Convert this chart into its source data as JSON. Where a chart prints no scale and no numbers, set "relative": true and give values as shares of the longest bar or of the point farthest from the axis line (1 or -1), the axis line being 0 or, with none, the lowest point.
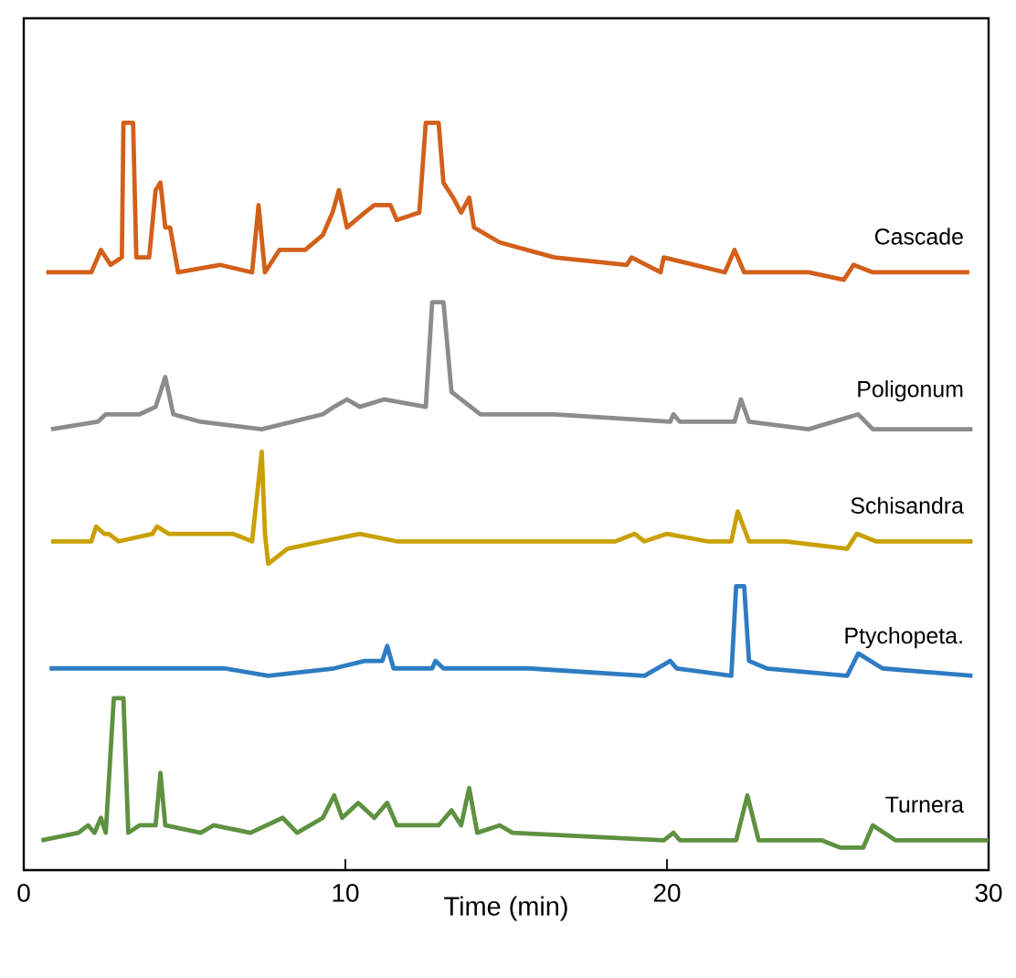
{
  "chart_data": {
    "type": "line",
    "relative": true,
    "xlabel": "Time (min)",
    "xlim": [
      0,
      30
    ],
    "xticks": [
      0,
      10,
      20,
      30
    ],
    "legend": false,
    "grid": false,
    "series": [
      {
        "name": "Cascade",
        "color": "#d2601a",
        "x": [
          0.7,
          2.1,
          2.4,
          2.7,
          3.05,
          3.1,
          3.4,
          3.5,
          3.9,
          4.1,
          4.25,
          4.4,
          4.55,
          4.8,
          6.1,
          7.1,
          7.3,
          7.5,
          7.95,
          8.75,
          9.3,
          9.6,
          9.8,
          10.05,
          10.6,
          10.9,
          11.2,
          11.4,
          11.6,
          12.3,
          12.5,
          12.9,
          13.05,
          13.35,
          13.6,
          13.85,
          14.0,
          14.8,
          16.5,
          18.75,
          18.9,
          19.8,
          19.9,
          21.8,
          22.1,
          22.4,
          23.7,
          24.4,
          25.5,
          25.8,
          26.4,
          29.4
        ],
        "values": [
          0.8,
          0.8,
          0.83,
          0.81,
          0.82,
          1.0,
          1.0,
          0.82,
          0.82,
          0.91,
          0.92,
          0.86,
          0.86,
          0.8,
          0.81,
          0.8,
          0.89,
          0.8,
          0.83,
          0.83,
          0.85,
          0.88,
          0.91,
          0.86,
          0.88,
          0.89,
          0.89,
          0.89,
          0.87,
          0.88,
          1.0,
          1.0,
          0.92,
          0.9,
          0.88,
          0.9,
          0.86,
          0.84,
          0.82,
          0.81,
          0.82,
          0.8,
          0.82,
          0.8,
          0.83,
          0.8,
          0.8,
          0.8,
          0.79,
          0.81,
          0.8,
          0.8
        ]
      },
      {
        "name": "Poligonum",
        "color": "#8c8c8c",
        "x": [
          0.85,
          2.3,
          2.55,
          3.6,
          4.1,
          4.4,
          4.65,
          5.5,
          7.4,
          9.3,
          9.65,
          10.05,
          10.45,
          11.2,
          12.5,
          12.7,
          13.05,
          13.3,
          14.2,
          15.7,
          16.5,
          20.1,
          20.2,
          20.4,
          22.1,
          22.3,
          22.55,
          24.4,
          25.95,
          26.4,
          29.5
        ],
        "values": [
          0.59,
          0.6,
          0.61,
          0.61,
          0.62,
          0.66,
          0.61,
          0.6,
          0.59,
          0.61,
          0.62,
          0.63,
          0.62,
          0.63,
          0.62,
          0.76,
          0.76,
          0.64,
          0.61,
          0.61,
          0.61,
          0.6,
          0.61,
          0.6,
          0.6,
          0.63,
          0.6,
          0.59,
          0.61,
          0.59,
          0.59
        ]
      },
      {
        "name": "Schisandra",
        "color": "#c9a000",
        "x": [
          0.85,
          2.1,
          2.25,
          2.5,
          2.65,
          2.95,
          4.0,
          4.15,
          4.5,
          6.5,
          7.1,
          7.4,
          7.5,
          7.6,
          8.2,
          9.3,
          10.45,
          11.6,
          13.5,
          18.4,
          19.0,
          19.3,
          20.0,
          21.25,
          22.0,
          22.2,
          22.55,
          23.7,
          25.6,
          25.9,
          26.5,
          29.5
        ],
        "values": [
          0.44,
          0.44,
          0.46,
          0.45,
          0.45,
          0.44,
          0.45,
          0.46,
          0.45,
          0.45,
          0.44,
          0.56,
          0.45,
          0.41,
          0.43,
          0.44,
          0.45,
          0.44,
          0.44,
          0.44,
          0.45,
          0.44,
          0.45,
          0.44,
          0.44,
          0.48,
          0.44,
          0.44,
          0.43,
          0.45,
          0.44,
          0.44
        ]
      },
      {
        "name": "Ptychopeta.",
        "color": "#2e7cc2",
        "x": [
          0.8,
          2.65,
          3.1,
          6.25,
          7.6,
          9.65,
          10.6,
          11.15,
          11.3,
          11.5,
          12.7,
          12.8,
          13.05,
          15.7,
          19.3,
          20.1,
          20.3,
          22.0,
          22.15,
          22.4,
          22.55,
          23.1,
          25.6,
          25.95,
          26.7,
          29.5
        ],
        "values": [
          0.27,
          0.27,
          0.27,
          0.27,
          0.26,
          0.27,
          0.28,
          0.28,
          0.3,
          0.27,
          0.27,
          0.28,
          0.27,
          0.27,
          0.26,
          0.28,
          0.27,
          0.26,
          0.38,
          0.38,
          0.28,
          0.27,
          0.26,
          0.29,
          0.27,
          0.26
        ]
      },
      {
        "name": "Turnera",
        "color": "#5e9140",
        "x": [
          0.55,
          1.7,
          2.0,
          2.2,
          2.4,
          2.55,
          2.8,
          3.1,
          3.25,
          3.6,
          4.1,
          4.25,
          4.4,
          5.5,
          5.9,
          7.05,
          8.05,
          8.5,
          9.3,
          9.65,
          9.9,
          10.4,
          10.9,
          11.3,
          11.6,
          12.9,
          13.3,
          13.6,
          13.85,
          14.1,
          14.8,
          15.2,
          19.9,
          20.2,
          20.4,
          22.15,
          22.5,
          22.85,
          24.8,
          25.4,
          26.1,
          26.4,
          27.1,
          30.0
        ],
        "values": [
          0.04,
          0.05,
          0.06,
          0.05,
          0.07,
          0.05,
          0.23,
          0.23,
          0.05,
          0.06,
          0.06,
          0.13,
          0.06,
          0.05,
          0.06,
          0.05,
          0.07,
          0.05,
          0.07,
          0.1,
          0.07,
          0.09,
          0.07,
          0.09,
          0.06,
          0.06,
          0.08,
          0.06,
          0.11,
          0.05,
          0.06,
          0.05,
          0.04,
          0.05,
          0.04,
          0.04,
          0.1,
          0.04,
          0.04,
          0.03,
          0.03,
          0.06,
          0.04,
          0.04
        ]
      }
    ]
  }
}
